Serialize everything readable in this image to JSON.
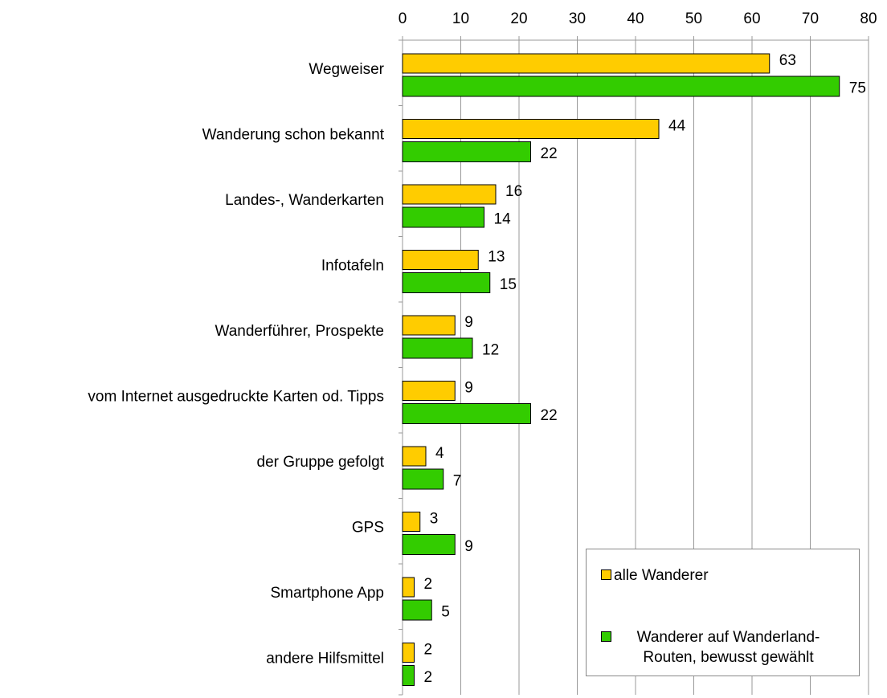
{
  "chart_data": {
    "type": "bar",
    "orientation": "horizontal",
    "categories": [
      "Wegweiser",
      "Wanderung schon bekannt",
      "Landes-, Wanderkarten",
      "Infotafeln",
      "Wanderführer, Prospekte",
      "vom Internet ausgedruckte Karten od. Tipps",
      "der Gruppe gefolgt",
      "GPS",
      "Smartphone App",
      "andere Hilfsmittel"
    ],
    "series": [
      {
        "name": "alle Wanderer",
        "color": "#ffcc00",
        "values": [
          63,
          44,
          16,
          13,
          9,
          9,
          4,
          3,
          2,
          2
        ]
      },
      {
        "name": "Wanderer auf Wanderland-Routen, bewusst gewählt",
        "color": "#33cc00",
        "values": [
          75,
          22,
          14,
          15,
          12,
          22,
          7,
          9,
          5,
          2
        ]
      }
    ],
    "xlim": [
      0,
      80
    ],
    "xticks": [
      0,
      10,
      20,
      30,
      40,
      50,
      60,
      70,
      80
    ],
    "grid": true,
    "legend": "lower right"
  }
}
